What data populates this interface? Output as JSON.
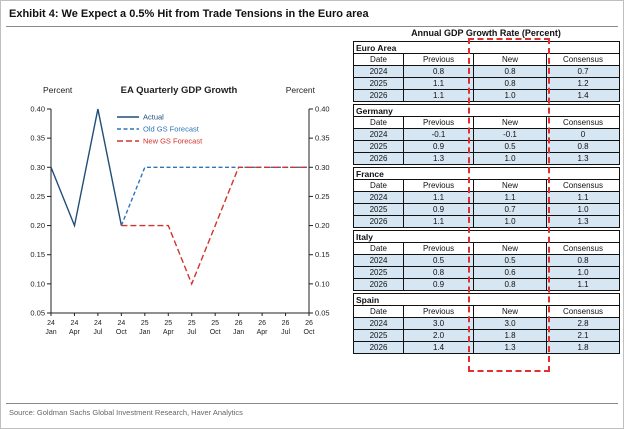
{
  "exhibit": {
    "title": "Exhibit 4: We Expect a 0.5% Hit from Trade Tensions in the Euro area",
    "source": "Source: Goldman Sachs Global Investment Research, Haver Analytics"
  },
  "chart_data": [
    {
      "type": "line",
      "title": "EA Quarterly GDP Growth",
      "ylabel_left": "Percent",
      "ylabel_right": "Percent",
      "ylim": [
        0.05,
        0.4
      ],
      "ytick_step": 0.05,
      "grid": false,
      "legend_position": "top-center-inside",
      "categories": [
        [
          "24",
          "Jan"
        ],
        [
          "24",
          "Apr"
        ],
        [
          "24",
          "Jul"
        ],
        [
          "24",
          "Oct"
        ],
        [
          "25",
          "Jan"
        ],
        [
          "25",
          "Apr"
        ],
        [
          "25",
          "Jul"
        ],
        [
          "25",
          "Oct"
        ],
        [
          "26",
          "Jan"
        ],
        [
          "26",
          "Apr"
        ],
        [
          "26",
          "Jul"
        ],
        [
          "26",
          "Oct"
        ]
      ],
      "series": [
        {
          "name": "Actual",
          "color": "#1f4e79",
          "dash": null,
          "values": [
            0.3,
            0.2,
            0.4,
            0.2,
            null,
            null,
            null,
            null,
            null,
            null,
            null,
            null
          ]
        },
        {
          "name": "Old GS Forecast",
          "color": "#2e75b6",
          "dash": "4,2.5",
          "values": [
            null,
            null,
            null,
            0.2,
            0.3,
            0.3,
            0.3,
            0.3,
            0.3,
            0.3,
            0.3,
            0.3
          ]
        },
        {
          "name": "New GS Forecast",
          "color": "#d0342c",
          "dash": "6,3",
          "values": [
            null,
            null,
            null,
            0.2,
            0.2,
            0.2,
            0.1,
            0.2,
            0.3,
            0.3,
            0.3,
            0.3
          ]
        }
      ]
    },
    {
      "type": "table",
      "title": "Annual GDP Growth Rate (Percent)",
      "headers": [
        "Date",
        "Previous",
        "New",
        "Consensus"
      ],
      "highlighted_column": "New",
      "sections": [
        {
          "name": "Euro Area",
          "rows": [
            [
              "2024",
              "0.8",
              "0.8",
              "0.7"
            ],
            [
              "2025",
              "1.1",
              "0.8",
              "1.2"
            ],
            [
              "2026",
              "1.1",
              "1.0",
              "1.4"
            ]
          ]
        },
        {
          "name": "Germany",
          "rows": [
            [
              "2024",
              "-0.1",
              "-0.1",
              "0"
            ],
            [
              "2025",
              "0.9",
              "0.5",
              "0.8"
            ],
            [
              "2026",
              "1.3",
              "1.0",
              "1.3"
            ]
          ]
        },
        {
          "name": "France",
          "rows": [
            [
              "2024",
              "1.1",
              "1.1",
              "1.1"
            ],
            [
              "2025",
              "0.9",
              "0.7",
              "1.0"
            ],
            [
              "2026",
              "1.1",
              "1.0",
              "1.3"
            ]
          ]
        },
        {
          "name": "Italy",
          "rows": [
            [
              "2024",
              "0.5",
              "0.5",
              "0.8"
            ],
            [
              "2025",
              "0.8",
              "0.6",
              "1.0"
            ],
            [
              "2026",
              "0.9",
              "0.8",
              "1.1"
            ]
          ]
        },
        {
          "name": "Spain",
          "rows": [
            [
              "2024",
              "3.0",
              "3.0",
              "2.8"
            ],
            [
              "2025",
              "2.0",
              "1.8",
              "2.1"
            ],
            [
              "2026",
              "1.4",
              "1.3",
              "1.8"
            ]
          ]
        }
      ]
    }
  ],
  "colors": {
    "row_shade": "#d6e6f2",
    "highlight_box": "#e03030",
    "axis": "#222222"
  }
}
